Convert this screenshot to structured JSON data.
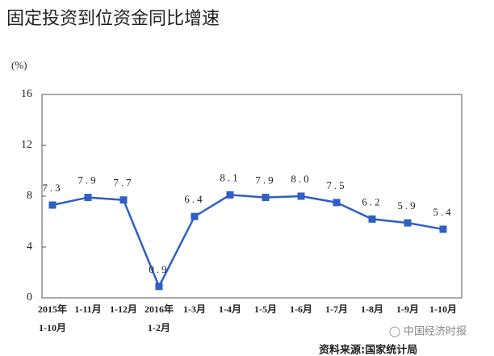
{
  "chart_data": {
    "type": "line",
    "title": "固定投资到位资金同比增速",
    "y_unit": "(%)",
    "categories": [
      [
        "2015年",
        "1-10月"
      ],
      [
        "1-11月"
      ],
      [
        "1-12月"
      ],
      [
        "2016年",
        "1-2月"
      ],
      [
        "1-3月"
      ],
      [
        "1-4月"
      ],
      [
        "1-5月"
      ],
      [
        "1-6月"
      ],
      [
        "1-7月"
      ],
      [
        "1-8月"
      ],
      [
        "1-9月"
      ],
      [
        "1-10月"
      ]
    ],
    "series": [
      {
        "name": "固定投资到位资金同比增速",
        "color": "#2f5fc4",
        "values": [
          7.3,
          7.9,
          7.7,
          0.9,
          6.4,
          8.1,
          7.9,
          8.0,
          7.5,
          6.2,
          5.9,
          5.4
        ],
        "value_labels": [
          "7.3",
          "7.9",
          "7.7",
          "0.9",
          "6.4",
          "8.1",
          "7.9",
          "8.0",
          "7.5",
          "6.2",
          "5.9",
          "5.4"
        ]
      }
    ],
    "ylim": [
      0,
      16
    ],
    "yticks": [
      0,
      4,
      8,
      12,
      16
    ],
    "grid": false,
    "source": "资料来源:国家统计局",
    "watermark": "中国经济时报"
  }
}
